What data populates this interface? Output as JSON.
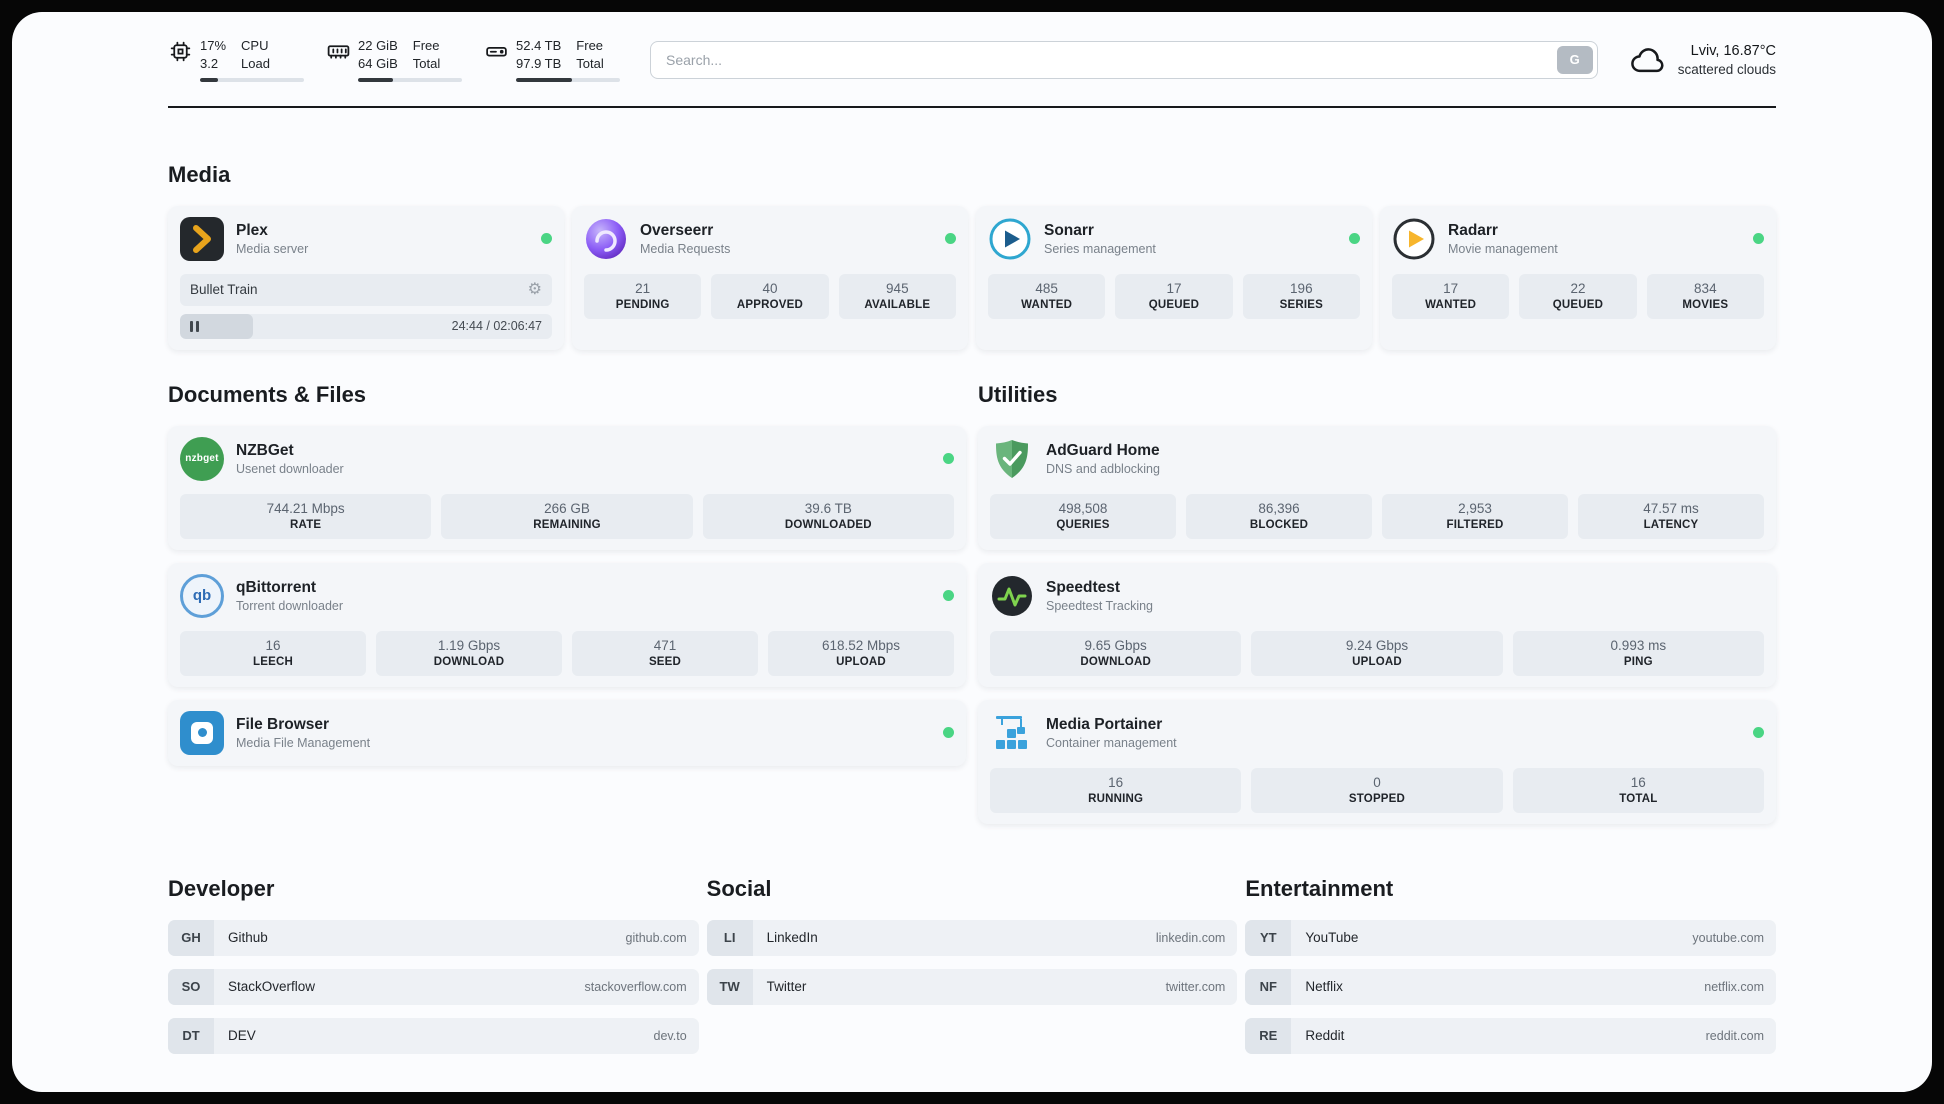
{
  "icons": {
    "gear": "⚙"
  },
  "colors": {
    "status_online": "#4ad584",
    "accent_plex": "#e8a41c",
    "accent_green": "#3f9e52"
  },
  "header": {
    "cpu": {
      "value_top": "17%",
      "value_bottom": "3.2",
      "label_top": "CPU",
      "label_bottom": "Load",
      "progress": 17
    },
    "ram": {
      "value_top": "22 GiB",
      "value_bottom": "64 GiB",
      "label_top": "Free",
      "label_bottom": "Total",
      "progress": 34
    },
    "disk": {
      "value_top": "52.4 TB",
      "value_bottom": "97.9 TB",
      "label_top": "Free",
      "label_bottom": "Total",
      "progress": 54
    },
    "search": {
      "placeholder": "Search...",
      "engine_button": "G"
    },
    "weather": {
      "location": "Lviv, 16.87°C",
      "condition": "scattered clouds"
    }
  },
  "sections": {
    "media": {
      "title": "Media",
      "plex": {
        "name": "Plex",
        "subtitle": "Media server",
        "now_playing": "Bullet Train",
        "time": "24:44 / 02:06:47",
        "progress_percent": 19.6
      },
      "overseerr": {
        "name": "Overseerr",
        "subtitle": "Media Requests",
        "stats": [
          {
            "value": "21",
            "label": "PENDING"
          },
          {
            "value": "40",
            "label": "APPROVED"
          },
          {
            "value": "945",
            "label": "AVAILABLE"
          }
        ]
      },
      "sonarr": {
        "name": "Sonarr",
        "subtitle": "Series management",
        "stats": [
          {
            "value": "485",
            "label": "WANTED"
          },
          {
            "value": "17",
            "label": "QUEUED"
          },
          {
            "value": "196",
            "label": "SERIES"
          }
        ]
      },
      "radarr": {
        "name": "Radarr",
        "subtitle": "Movie management",
        "stats": [
          {
            "value": "17",
            "label": "WANTED"
          },
          {
            "value": "22",
            "label": "QUEUED"
          },
          {
            "value": "834",
            "label": "MOVIES"
          }
        ]
      }
    },
    "documents": {
      "title": "Documents & Files",
      "nzbget": {
        "name": "NZBGet",
        "subtitle": "Usenet downloader",
        "stats": [
          {
            "value": "744.21 Mbps",
            "label": "RATE"
          },
          {
            "value": "266 GB",
            "label": "REMAINING"
          },
          {
            "value": "39.6 TB",
            "label": "DOWNLOADED"
          }
        ]
      },
      "qbittorrent": {
        "name": "qBittorrent",
        "subtitle": "Torrent downloader",
        "stats": [
          {
            "value": "16",
            "label": "LEECH"
          },
          {
            "value": "1.19 Gbps",
            "label": "DOWNLOAD"
          },
          {
            "value": "471",
            "label": "SEED"
          },
          {
            "value": "618.52 Mbps",
            "label": "UPLOAD"
          }
        ]
      },
      "filebrowser": {
        "name": "File Browser",
        "subtitle": "Media File Management"
      }
    },
    "utilities": {
      "title": "Utilities",
      "adguard": {
        "name": "AdGuard Home",
        "subtitle": "DNS and adblocking",
        "stats": [
          {
            "value": "498,508",
            "label": "QUERIES"
          },
          {
            "value": "86,396",
            "label": "BLOCKED"
          },
          {
            "value": "2,953",
            "label": "FILTERED"
          },
          {
            "value": "47.57 ms",
            "label": "LATENCY"
          }
        ]
      },
      "speedtest": {
        "name": "Speedtest",
        "subtitle": "Speedtest Tracking",
        "stats": [
          {
            "value": "9.65 Gbps",
            "label": "DOWNLOAD"
          },
          {
            "value": "9.24 Gbps",
            "label": "UPLOAD"
          },
          {
            "value": "0.993 ms",
            "label": "PING"
          }
        ]
      },
      "portainer": {
        "name": "Media Portainer",
        "subtitle": "Container management",
        "stats": [
          {
            "value": "16",
            "label": "RUNNING"
          },
          {
            "value": "0",
            "label": "STOPPED"
          },
          {
            "value": "16",
            "label": "TOTAL"
          }
        ]
      }
    },
    "bookmarks": [
      {
        "title": "Developer",
        "items": [
          {
            "abbr": "GH",
            "name": "Github",
            "url": "github.com"
          },
          {
            "abbr": "SO",
            "name": "StackOverflow",
            "url": "stackoverflow.com"
          },
          {
            "abbr": "DT",
            "name": "DEV",
            "url": "dev.to"
          }
        ]
      },
      {
        "title": "Social",
        "items": [
          {
            "abbr": "LI",
            "name": "LinkedIn",
            "url": "linkedin.com"
          },
          {
            "abbr": "TW",
            "name": "Twitter",
            "url": "twitter.com"
          }
        ]
      },
      {
        "title": "Entertainment",
        "items": [
          {
            "abbr": "YT",
            "name": "YouTube",
            "url": "youtube.com"
          },
          {
            "abbr": "NF",
            "name": "Netflix",
            "url": "netflix.com"
          },
          {
            "abbr": "RE",
            "name": "Reddit",
            "url": "reddit.com"
          }
        ]
      }
    ]
  }
}
